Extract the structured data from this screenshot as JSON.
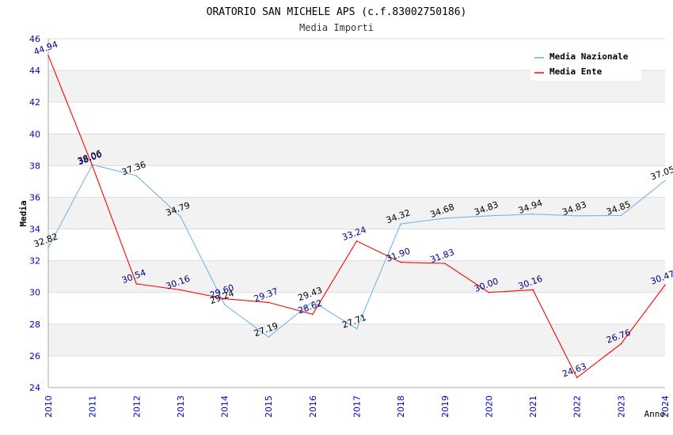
{
  "chart_data": {
    "type": "line",
    "title": "ORATORIO SAN MICHELE APS (c.f.83002750186)",
    "subtitle": "Media Importi",
    "xlabel": "Anno",
    "ylabel": "Media",
    "ylim": [
      24,
      46
    ],
    "y_ticks": [
      24,
      26,
      28,
      30,
      32,
      34,
      36,
      38,
      40,
      42,
      44,
      46
    ],
    "x": [
      "2010",
      "2011",
      "2012",
      "2013",
      "2014",
      "2015",
      "2016",
      "2017",
      "2018",
      "2019",
      "2020",
      "2021",
      "2022",
      "2023",
      "2024"
    ],
    "legend_position": "top-right",
    "series": [
      {
        "name": "Media Nazionale",
        "color": "#6aaee8",
        "label_color": "#000000",
        "values": [
          32.82,
          38.06,
          37.36,
          34.79,
          29.24,
          27.19,
          29.43,
          27.71,
          34.32,
          34.68,
          34.83,
          34.94,
          34.83,
          34.85,
          37.05
        ],
        "labels": [
          "32.82",
          "38.06",
          "37.36",
          "34.79",
          "29.24",
          "27.19",
          "29.43",
          "27.71",
          "34.32",
          "34.68",
          "34.83",
          "34.94",
          "34.83",
          "34.85",
          "37.05"
        ]
      },
      {
        "name": "Media Ente",
        "color": "#ff0000",
        "label_color": "#000080",
        "values": [
          44.94,
          38.0,
          30.54,
          30.16,
          29.6,
          29.37,
          28.62,
          33.24,
          31.9,
          31.83,
          30.0,
          30.16,
          24.63,
          26.76,
          30.47
        ],
        "labels": [
          "44.94",
          "38.00",
          "30.54",
          "30.16",
          "29.60",
          "29.37",
          "28.62",
          "33.24",
          "31.90",
          "31.83",
          "30.00",
          "30.16",
          "24.63",
          "26.76",
          "30.47"
        ]
      }
    ],
    "colors": {
      "tick": "#0000cc",
      "band": "#f2f2f2",
      "grid": "#dddddd",
      "axis": "#aaaaaa"
    }
  }
}
